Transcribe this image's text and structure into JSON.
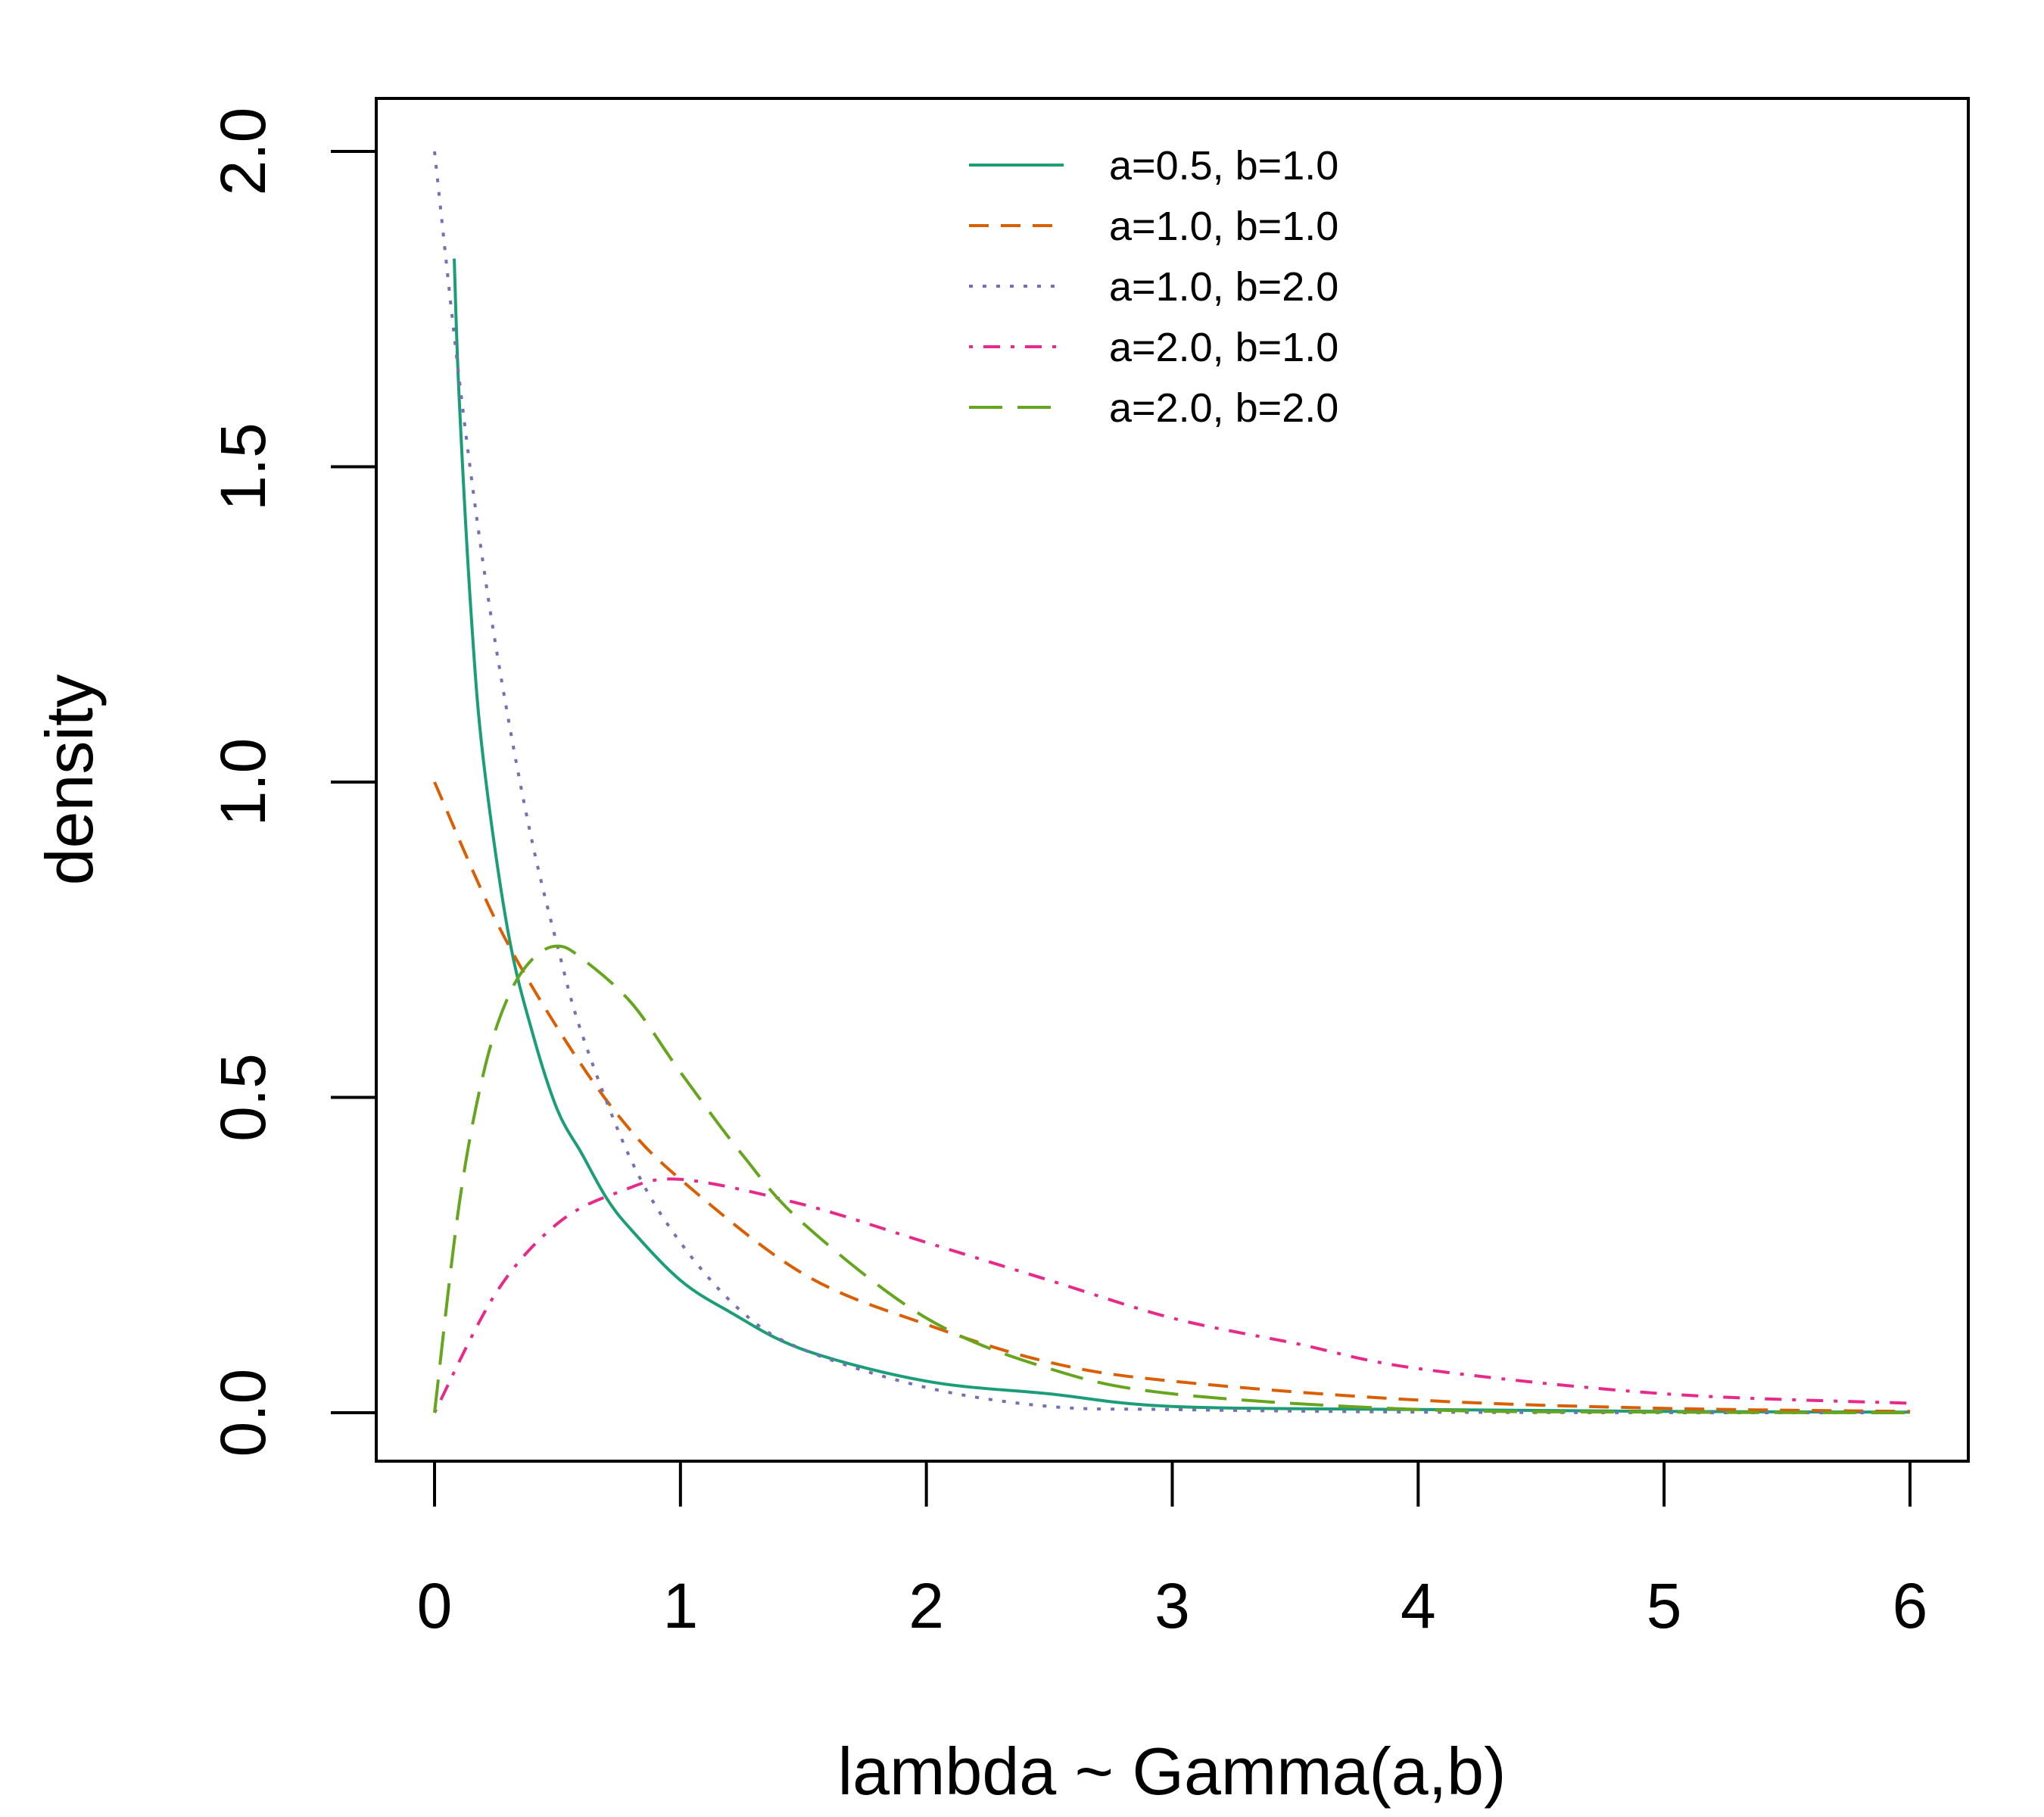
{
  "chart_data": {
    "type": "line",
    "title": "",
    "xlabel": "lambda ~ Gamma(a,b)",
    "ylabel": "density",
    "xlim": [
      0,
      6
    ],
    "ylim": [
      0,
      2
    ],
    "xticks": [
      "0",
      "1",
      "2",
      "3",
      "4",
      "5",
      "6"
    ],
    "yticks": [
      "0.0",
      "0.5",
      "1.0",
      "1.5",
      "2.0"
    ],
    "grid": false,
    "legend_position": "top-center",
    "series": [
      {
        "name": "a=0.5, b=1.0",
        "color": "#1B9E77",
        "dash": "solid",
        "x": [
          0.08,
          0.1,
          0.15,
          0.2,
          0.3,
          0.4,
          0.5,
          0.6,
          0.7,
          0.8,
          1.0,
          1.2,
          1.5,
          2.0,
          2.5,
          3.0,
          4.0,
          5.0,
          6.0
        ],
        "y": [
          1.83,
          1.61,
          1.26,
          1.03,
          0.76,
          0.6,
          0.48,
          0.41,
          0.34,
          0.29,
          0.21,
          0.16,
          0.1,
          0.05,
          0.03,
          0.01,
          0.005,
          0.002,
          0.001
        ]
      },
      {
        "name": "a=1.0, b=1.0",
        "color": "#D95F02",
        "dash": "short-dash",
        "x": [
          0,
          0.25,
          0.5,
          0.75,
          1.0,
          1.5,
          2.0,
          2.5,
          3.0,
          4.0,
          5.0,
          6.0
        ],
        "y": [
          1.0,
          0.78,
          0.61,
          0.47,
          0.37,
          0.22,
          0.14,
          0.08,
          0.05,
          0.02,
          0.007,
          0.002
        ]
      },
      {
        "name": "a=1.0, b=2.0",
        "color": "#7570B3",
        "dash": "dotted",
        "x": [
          0,
          0.1,
          0.2,
          0.3,
          0.4,
          0.5,
          0.6,
          0.8,
          1.0,
          1.25,
          1.5,
          2.0,
          2.5,
          3.0,
          4.0,
          5.0,
          6.0
        ],
        "y": [
          2.0,
          1.64,
          1.34,
          1.1,
          0.9,
          0.74,
          0.6,
          0.4,
          0.27,
          0.16,
          0.1,
          0.04,
          0.01,
          0.005,
          0.001,
          0.0001,
          0.0
        ]
      },
      {
        "name": "a=2.0, b=1.0",
        "color": "#E7298A",
        "dash": "dash-dot",
        "x": [
          0,
          0.25,
          0.5,
          0.75,
          1.0,
          1.5,
          2.0,
          2.5,
          3.0,
          3.5,
          4.0,
          5.0,
          6.0
        ],
        "y": [
          0.0,
          0.19,
          0.3,
          0.35,
          0.37,
          0.33,
          0.27,
          0.21,
          0.15,
          0.11,
          0.07,
          0.03,
          0.015
        ]
      },
      {
        "name": "a=2.0, b=2.0",
        "color": "#66A61E",
        "dash": "long-dash",
        "x": [
          0,
          0.1,
          0.2,
          0.3,
          0.4,
          0.5,
          0.6,
          0.8,
          1.0,
          1.25,
          1.5,
          2.0,
          2.5,
          3.0,
          4.0,
          5.0,
          6.0
        ],
        "y": [
          0.0,
          0.33,
          0.54,
          0.66,
          0.72,
          0.74,
          0.72,
          0.65,
          0.54,
          0.41,
          0.3,
          0.15,
          0.07,
          0.03,
          0.005,
          0.001,
          0.0
        ]
      }
    ]
  }
}
